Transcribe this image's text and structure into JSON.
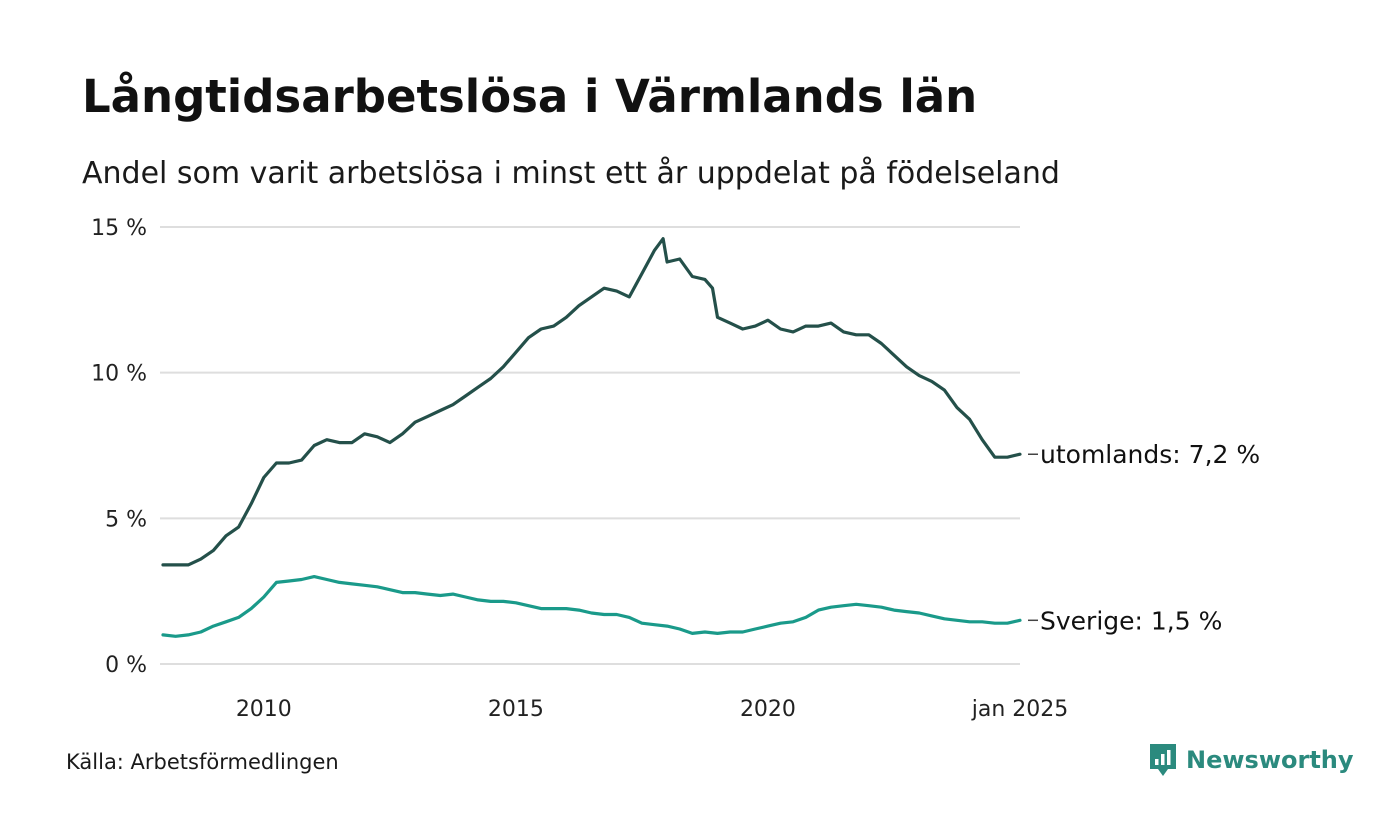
{
  "title": "Långtidsarbetslösa i Värmlands län",
  "subtitle": "Andel som varit arbetslösa i minst ett år uppdelat på födelseland",
  "source": "Källa: Arbetsförmedlingen",
  "brand": "Newsworthy",
  "colors": {
    "utomlands": "#24504a",
    "sverige": "#1a9a8a",
    "grid": "#dedede",
    "brand": "#2b8a7e"
  },
  "chart_data": {
    "type": "line",
    "title": "Långtidsarbetslösa i Värmlands län",
    "xlabel": "",
    "ylabel": "",
    "ylim": [
      0,
      15
    ],
    "xlim": [
      2008.0,
      2025.0
    ],
    "y_ticks": [
      {
        "value": 0,
        "label": "0 %"
      },
      {
        "value": 5,
        "label": "5 %"
      },
      {
        "value": 10,
        "label": "10 %"
      },
      {
        "value": 15,
        "label": "15 %"
      }
    ],
    "x_ticks": [
      {
        "value": 2010.0,
        "label": "2010"
      },
      {
        "value": 2015.0,
        "label": "2015"
      },
      {
        "value": 2020.0,
        "label": "2020"
      },
      {
        "value": 2025.0,
        "label": "jan 2025"
      }
    ],
    "grid": true,
    "series": [
      {
        "name": "utomlands",
        "end_label": "utomlands: 7,2 %",
        "color": "#24504a",
        "x": [
          2008.0,
          2008.25,
          2008.5,
          2008.75,
          2009.0,
          2009.25,
          2009.5,
          2009.75,
          2010.0,
          2010.25,
          2010.5,
          2010.75,
          2011.0,
          2011.25,
          2011.5,
          2011.75,
          2012.0,
          2012.25,
          2012.5,
          2012.75,
          2013.0,
          2013.25,
          2013.5,
          2013.75,
          2014.0,
          2014.25,
          2014.5,
          2014.75,
          2015.0,
          2015.25,
          2015.5,
          2015.75,
          2016.0,
          2016.25,
          2016.5,
          2016.75,
          2017.0,
          2017.25,
          2017.5,
          2017.75,
          2017.92,
          2018.0,
          2018.25,
          2018.5,
          2018.75,
          2018.9,
          2019.0,
          2019.25,
          2019.5,
          2019.75,
          2020.0,
          2020.25,
          2020.5,
          2020.75,
          2021.0,
          2021.25,
          2021.5,
          2021.75,
          2022.0,
          2022.25,
          2022.5,
          2022.75,
          2023.0,
          2023.25,
          2023.5,
          2023.75,
          2024.0,
          2024.25,
          2024.5,
          2024.75,
          2025.0
        ],
        "y": [
          3.4,
          3.4,
          3.4,
          3.6,
          3.9,
          4.4,
          4.7,
          5.5,
          6.4,
          6.9,
          6.9,
          7.0,
          7.5,
          7.7,
          7.6,
          7.6,
          7.9,
          7.8,
          7.6,
          7.9,
          8.3,
          8.5,
          8.7,
          8.9,
          9.2,
          9.5,
          9.8,
          10.2,
          10.7,
          11.2,
          11.5,
          11.6,
          11.9,
          12.3,
          12.6,
          12.9,
          12.8,
          12.6,
          13.4,
          14.2,
          14.6,
          13.8,
          13.9,
          13.3,
          13.2,
          12.9,
          11.9,
          11.7,
          11.5,
          11.6,
          11.8,
          11.5,
          11.4,
          11.6,
          11.6,
          11.7,
          11.4,
          11.3,
          11.3,
          11.0,
          10.6,
          10.2,
          9.9,
          9.7,
          9.4,
          8.8,
          8.4,
          7.7,
          7.1,
          7.1,
          7.2
        ]
      },
      {
        "name": "Sverige",
        "end_label": "Sverige: 1,5 %",
        "color": "#1a9a8a",
        "x": [
          2008.0,
          2008.25,
          2008.5,
          2008.75,
          2009.0,
          2009.25,
          2009.5,
          2009.75,
          2010.0,
          2010.25,
          2010.5,
          2010.75,
          2011.0,
          2011.25,
          2011.5,
          2011.75,
          2012.0,
          2012.25,
          2012.5,
          2012.75,
          2013.0,
          2013.25,
          2013.5,
          2013.75,
          2014.0,
          2014.25,
          2014.5,
          2014.75,
          2015.0,
          2015.25,
          2015.5,
          2015.75,
          2016.0,
          2016.25,
          2016.5,
          2016.75,
          2017.0,
          2017.25,
          2017.5,
          2017.75,
          2018.0,
          2018.25,
          2018.5,
          2018.75,
          2019.0,
          2019.25,
          2019.5,
          2019.75,
          2020.0,
          2020.25,
          2020.5,
          2020.75,
          2021.0,
          2021.25,
          2021.5,
          2021.75,
          2022.0,
          2022.25,
          2022.5,
          2022.75,
          2023.0,
          2023.25,
          2023.5,
          2023.75,
          2024.0,
          2024.25,
          2024.5,
          2024.75,
          2025.0
        ],
        "y": [
          1.0,
          0.95,
          1.0,
          1.1,
          1.3,
          1.45,
          1.6,
          1.9,
          2.3,
          2.8,
          2.85,
          2.9,
          3.0,
          2.9,
          2.8,
          2.75,
          2.7,
          2.65,
          2.55,
          2.45,
          2.45,
          2.4,
          2.35,
          2.4,
          2.3,
          2.2,
          2.15,
          2.15,
          2.1,
          2.0,
          1.9,
          1.9,
          1.9,
          1.85,
          1.75,
          1.7,
          1.7,
          1.6,
          1.4,
          1.35,
          1.3,
          1.2,
          1.05,
          1.1,
          1.05,
          1.1,
          1.1,
          1.2,
          1.3,
          1.4,
          1.45,
          1.6,
          1.85,
          1.95,
          2.0,
          2.05,
          2.0,
          1.95,
          1.85,
          1.8,
          1.75,
          1.65,
          1.55,
          1.5,
          1.45,
          1.45,
          1.4,
          1.4,
          1.5
        ]
      }
    ]
  }
}
